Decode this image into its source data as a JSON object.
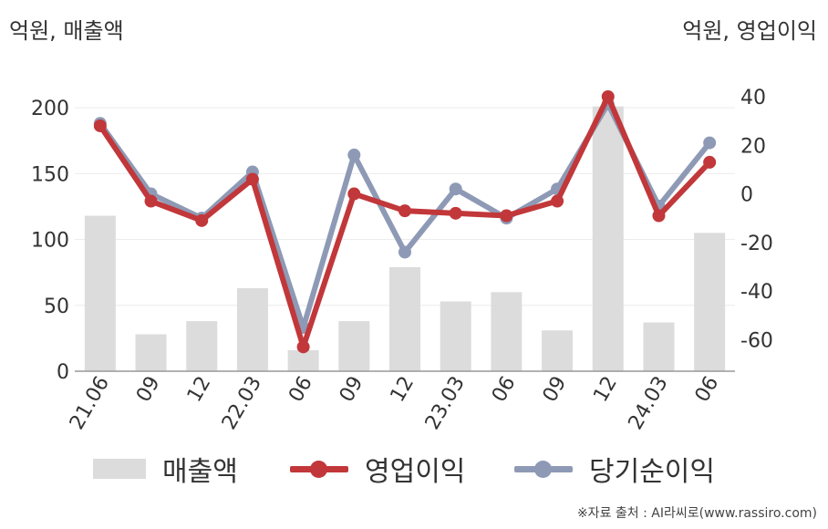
{
  "colors": {
    "bar": "#dcdcdc",
    "operating_profit": "#c1373a",
    "net_income": "#8e9ab5",
    "axis": "#999999",
    "grid": "#ececec",
    "text": "#333333"
  },
  "units": {
    "left": "억원, 매출액",
    "right": "억원, 영업이익"
  },
  "legend": {
    "sales": "매출액",
    "operating_profit": "영업이익",
    "net_income": "당기순이익"
  },
  "source": "※자료 출처 : AI라씨로(www.rassiro.com)",
  "chart_data": {
    "type": "bar+line",
    "categories": [
      "21.06",
      "09",
      "12",
      "22.03",
      "06",
      "09",
      "12",
      "23.03",
      "06",
      "09",
      "12",
      "24.03",
      "06"
    ],
    "left_axis": {
      "ylim": [
        0,
        225
      ],
      "ticks": [
        0,
        50,
        100,
        150,
        200
      ]
    },
    "right_axis": {
      "ylim": [
        -73,
        49
      ],
      "ticks": [
        -60,
        -40,
        -20,
        0,
        20,
        40
      ]
    },
    "series": [
      {
        "name": "매출액",
        "type": "bar",
        "axis": "left",
        "values": [
          118,
          28,
          38,
          63,
          16,
          38,
          79,
          53,
          60,
          31,
          201,
          37,
          105
        ]
      },
      {
        "name": "영업이익",
        "type": "line",
        "axis": "right",
        "values": [
          28,
          -3,
          -11,
          6,
          -63,
          0,
          -7,
          -8,
          -9,
          -3,
          40,
          -9,
          13
        ]
      },
      {
        "name": "당기순이익",
        "type": "line",
        "axis": "right",
        "values": [
          29,
          0,
          -10,
          9,
          -55,
          16,
          -24,
          2,
          -10,
          2,
          37,
          -5,
          21
        ]
      }
    ]
  }
}
